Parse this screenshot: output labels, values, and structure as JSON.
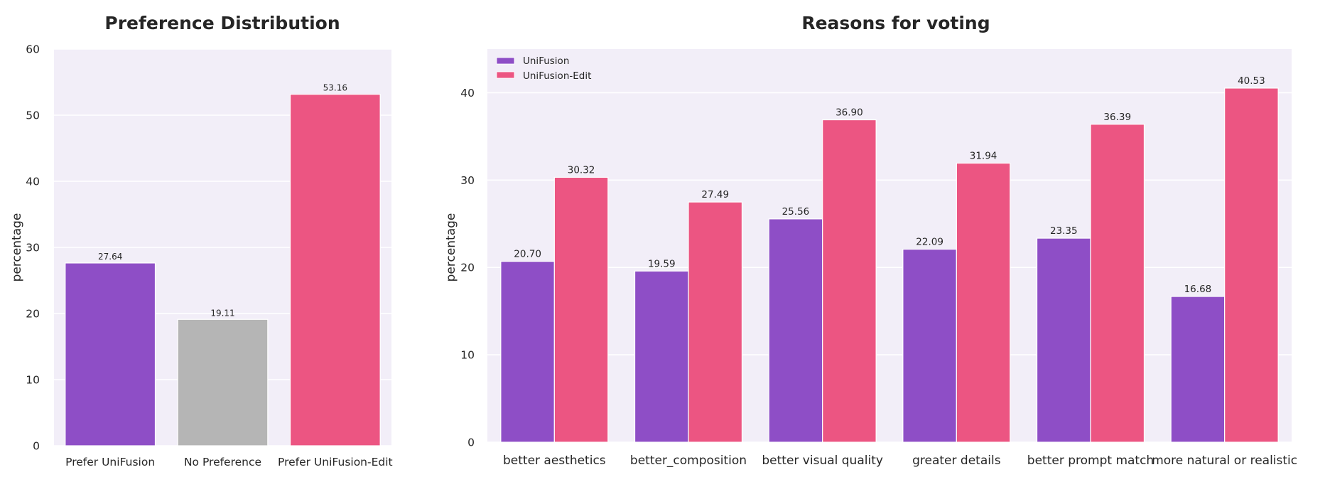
{
  "chart_data": [
    {
      "type": "bar",
      "title": "Preference Distribution",
      "xlabel": "",
      "ylabel": "percentage",
      "ylim": [
        0,
        60
      ],
      "yticks": [
        0,
        10,
        20,
        30,
        40,
        50,
        60
      ],
      "grid": true,
      "categories": [
        "Prefer UniFusion",
        "No Preference",
        "Prefer UniFusion-Edit"
      ],
      "values": [
        27.64,
        19.11,
        53.16
      ],
      "value_labels": [
        "27.64",
        "19.11",
        "53.16"
      ],
      "colors": [
        "#8e4ec6",
        "#b5b5b5",
        "#ec5582"
      ]
    },
    {
      "type": "bar",
      "title": "Reasons for voting",
      "xlabel": "",
      "ylabel": "percentage",
      "ylim": [
        0,
        45
      ],
      "yticks": [
        0,
        10,
        20,
        30,
        40
      ],
      "grid": true,
      "legend_position": "top-left",
      "categories": [
        "better aesthetics",
        "better_composition",
        "better visual quality",
        "greater details",
        "better prompt match",
        "more natural or realistic"
      ],
      "series": [
        {
          "name": "UniFusion",
          "color": "#8e4ec6",
          "values": [
            20.7,
            19.59,
            25.56,
            22.09,
            23.35,
            16.68
          ],
          "value_labels": [
            "20.70",
            "19.59",
            "25.56",
            "22.09",
            "23.35",
            "16.68"
          ]
        },
        {
          "name": "UniFusion-Edit",
          "color": "#ec5582",
          "values": [
            30.32,
            27.49,
            36.9,
            31.94,
            36.39,
            40.53
          ],
          "value_labels": [
            "30.32",
            "27.49",
            "36.90",
            "31.94",
            "36.39",
            "40.53"
          ]
        }
      ]
    }
  ],
  "style": {
    "plot_background": "#f2eef8",
    "grid_color": "#ffffff",
    "text_color": "#262626"
  }
}
